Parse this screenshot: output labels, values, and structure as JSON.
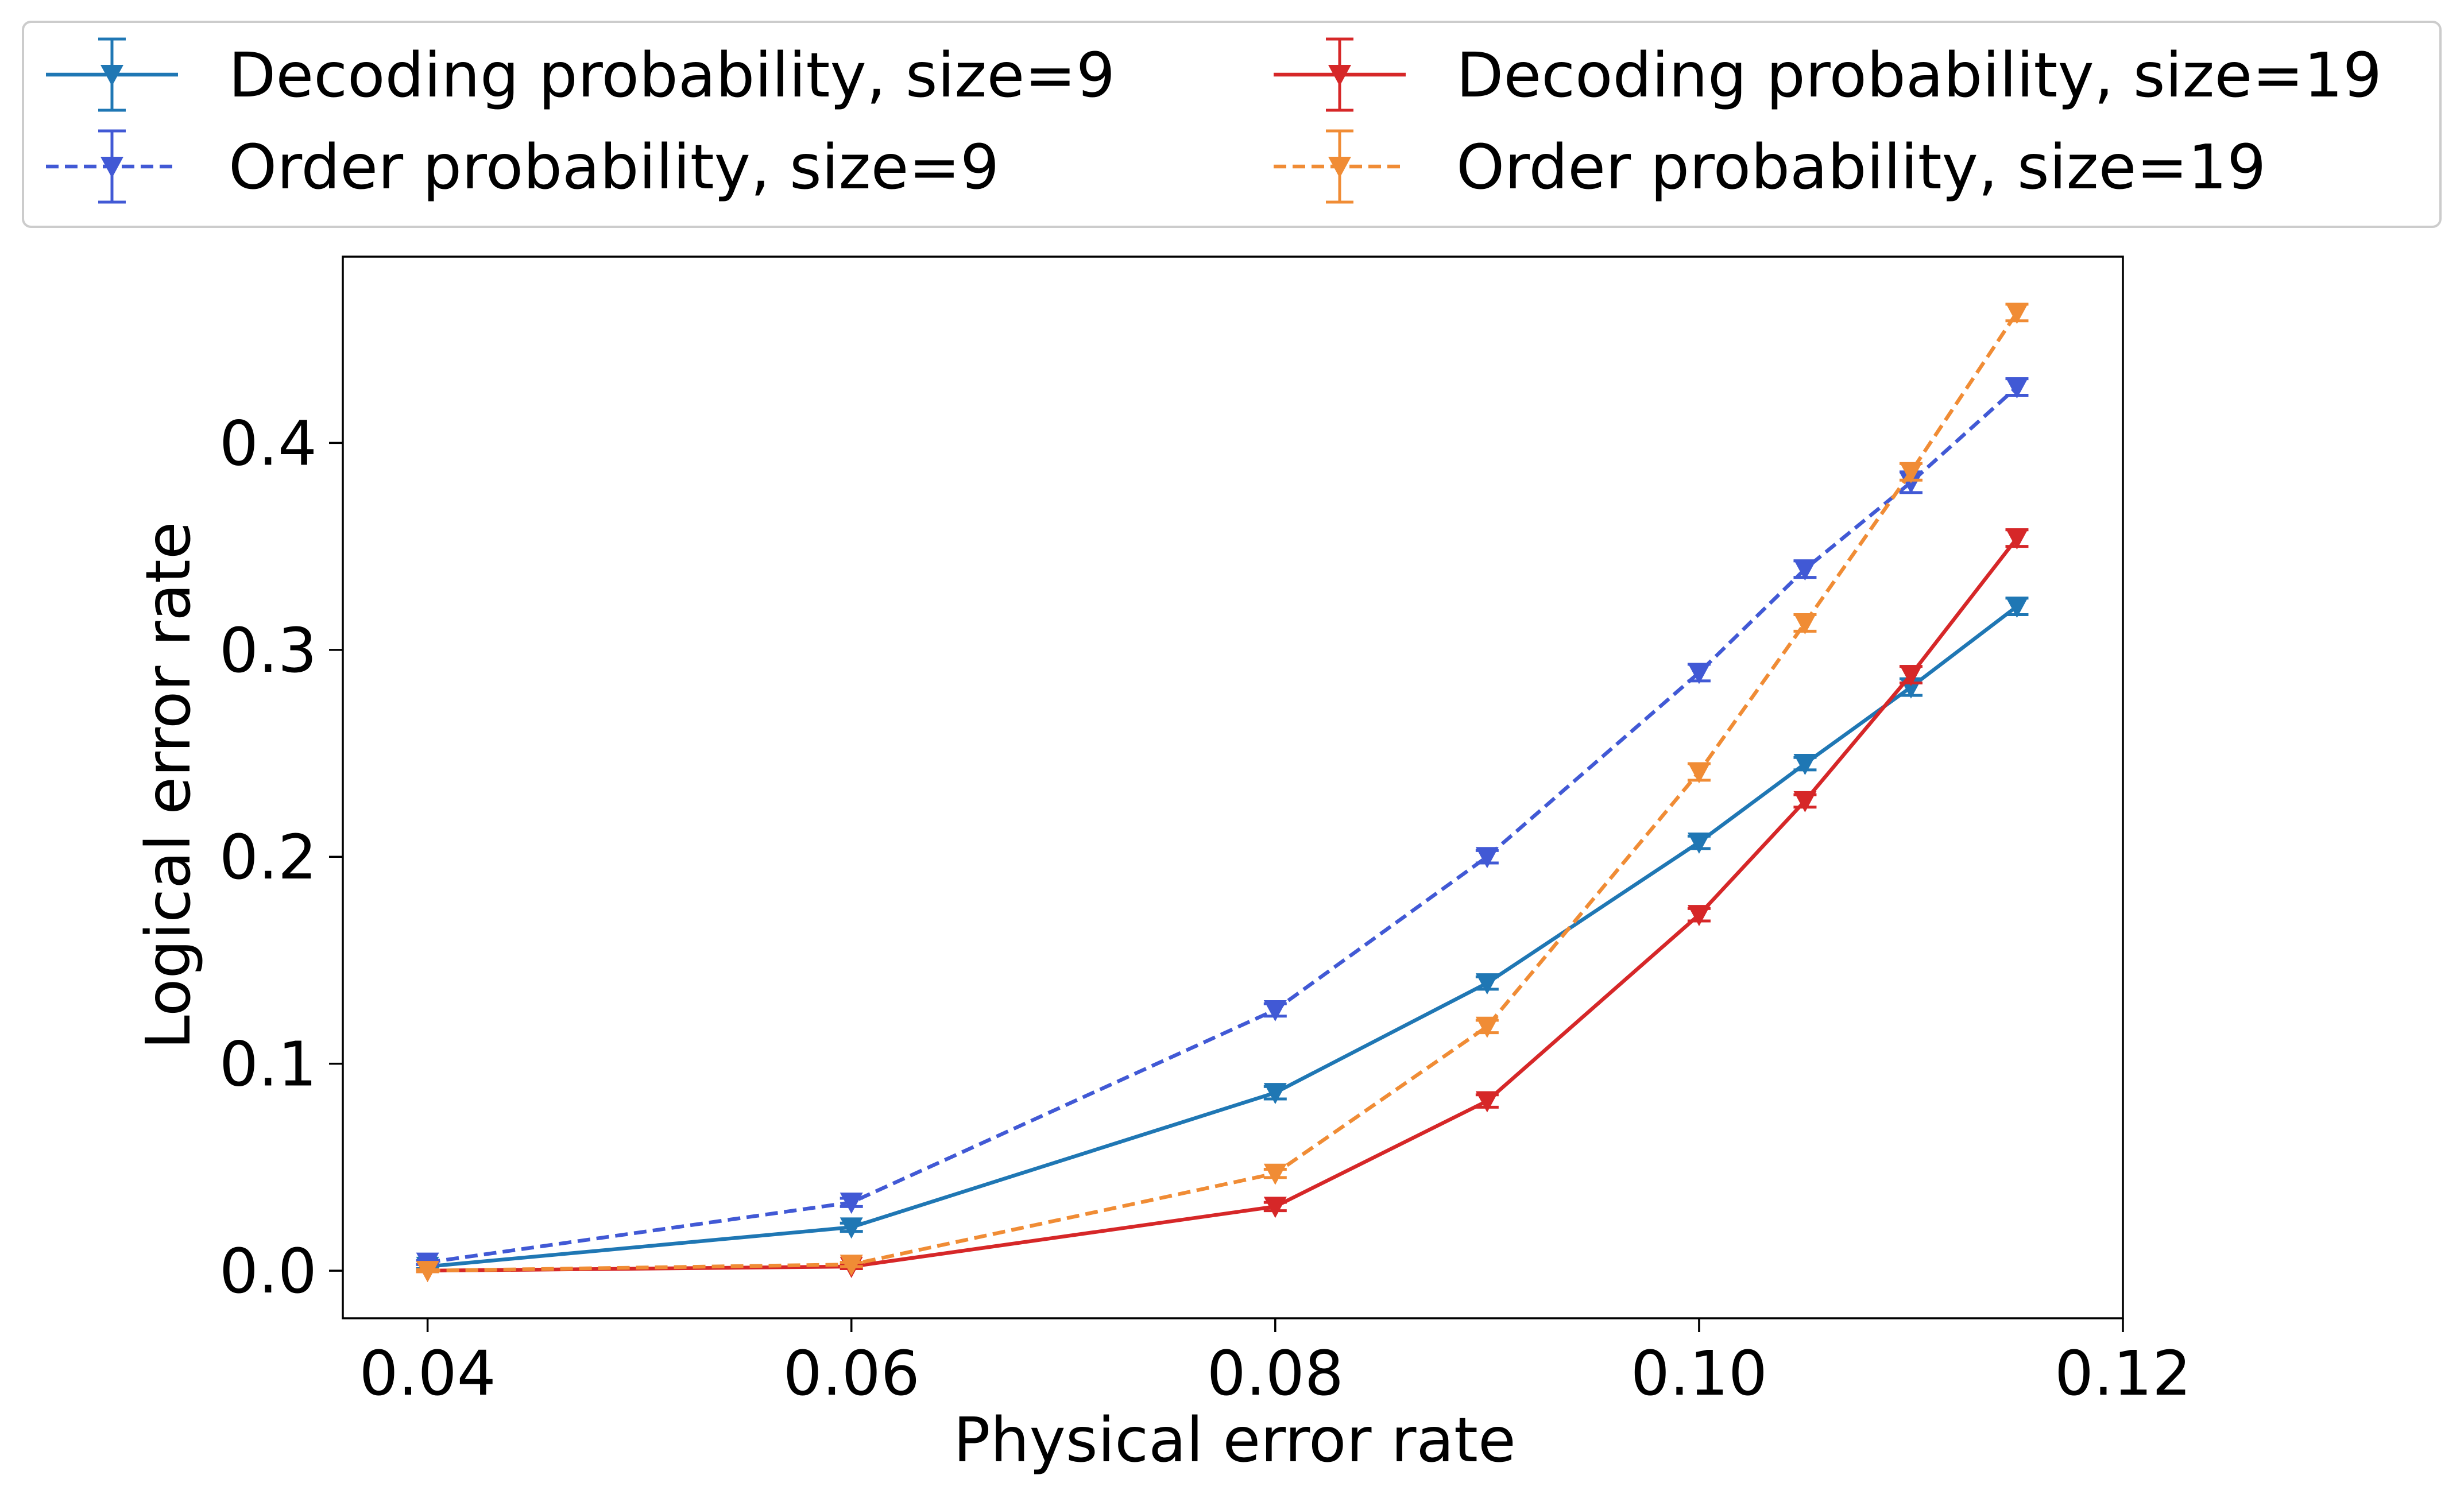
{
  "chart_data": {
    "type": "line",
    "title": "",
    "xlabel": "Physical error rate",
    "ylabel": "Logical error rate",
    "xlim": [
      0.036,
      0.12
    ],
    "ylim": [
      -0.023,
      0.49
    ],
    "x_ticks": [
      0.04,
      0.06,
      0.08,
      0.1,
      0.12
    ],
    "x_tick_labels": [
      "0.04",
      "0.06",
      "0.08",
      "0.10",
      "0.12"
    ],
    "y_ticks": [
      0.0,
      0.1,
      0.2,
      0.3,
      0.4
    ],
    "y_tick_labels": [
      "0.0",
      "0.1",
      "0.2",
      "0.3",
      "0.4"
    ],
    "grid": false,
    "legend_position": "top",
    "legend_columns": 2,
    "marker": "triangle-down",
    "error_bars": true,
    "series": [
      {
        "name": "Decoding probability, size=9",
        "color": "#1f77b4",
        "linestyle": "solid",
        "x": [
          0.04,
          0.06,
          0.08,
          0.09,
          0.1,
          0.105,
          0.11,
          0.115
        ],
        "y": [
          0.002,
          0.021,
          0.086,
          0.139,
          0.207,
          0.245,
          0.282,
          0.321
        ],
        "err": [
          0.001,
          0.002,
          0.003,
          0.003,
          0.003,
          0.003,
          0.004,
          0.004
        ]
      },
      {
        "name": "Order probability, size=9",
        "color": "#4159d5",
        "linestyle": "dashed",
        "x": [
          0.04,
          0.06,
          0.08,
          0.09,
          0.1,
          0.105,
          0.11,
          0.115
        ],
        "y": [
          0.004,
          0.033,
          0.126,
          0.2,
          0.289,
          0.339,
          0.381,
          0.427
        ],
        "err": [
          0.001,
          0.002,
          0.003,
          0.003,
          0.004,
          0.004,
          0.005,
          0.004
        ]
      },
      {
        "name": "Decoding probability, size=19",
        "color": "#d62728",
        "linestyle": "solid",
        "x": [
          0.04,
          0.06,
          0.08,
          0.09,
          0.1,
          0.105,
          0.11,
          0.115
        ],
        "y": [
          0.0,
          0.002,
          0.031,
          0.082,
          0.172,
          0.227,
          0.288,
          0.354
        ],
        "err": [
          0.0005,
          0.001,
          0.002,
          0.003,
          0.003,
          0.003,
          0.004,
          0.004
        ]
      },
      {
        "name": "Order probability, size=19",
        "color": "#f08c35",
        "linestyle": "dashed",
        "x": [
          0.04,
          0.06,
          0.08,
          0.09,
          0.1,
          0.105,
          0.11,
          0.115
        ],
        "y": [
          0.0,
          0.003,
          0.047,
          0.118,
          0.241,
          0.313,
          0.386,
          0.463
        ],
        "err": [
          0.0005,
          0.001,
          0.002,
          0.003,
          0.004,
          0.004,
          0.004,
          0.004
        ]
      }
    ]
  }
}
